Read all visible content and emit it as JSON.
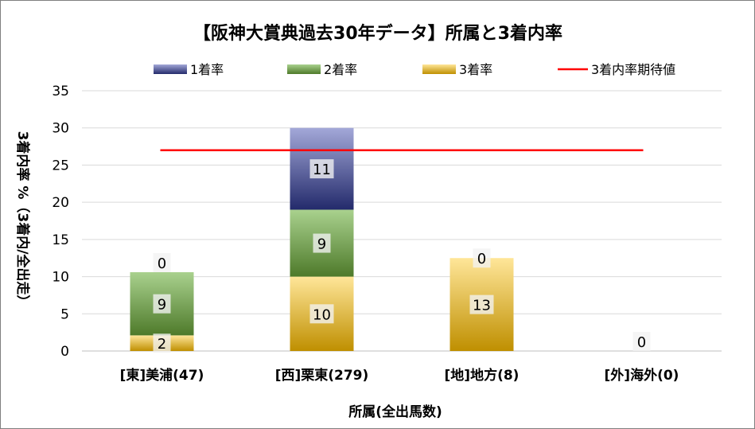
{
  "chart_data": {
    "type": "bar",
    "stacked": true,
    "title": "【阪神大賞典過去30年データ】所属と3着内率",
    "xlabel": "所属(全出馬数)",
    "ylabel": "3着内率 %（3着内/全出走）",
    "ylim": [
      0,
      35
    ],
    "yticks": [
      0,
      5,
      10,
      15,
      20,
      25,
      30,
      35
    ],
    "grid": true,
    "legend_position": "top",
    "categories": [
      "[東]美浦(47)",
      "[西]栗東(279)",
      "[地]地方(8)",
      "[外]海外(0)"
    ],
    "series": [
      {
        "name": "1着率",
        "values": [
          0,
          11,
          0,
          0
        ],
        "labels": [
          "0",
          "11",
          "",
          "0"
        ],
        "color_top": "#a3a8d8",
        "color_bottom": "#232a6b"
      },
      {
        "name": "2着率",
        "values": [
          8.5,
          9,
          0,
          0
        ],
        "labels": [
          "9",
          "9",
          "",
          ""
        ],
        "color_top": "#a9d18e",
        "color_bottom": "#4e7a2a"
      },
      {
        "name": "3着率",
        "values": [
          2.1,
          10,
          12.5,
          0
        ],
        "labels": [
          "2",
          "10",
          "13",
          ""
        ],
        "color_top": "#ffe699",
        "color_bottom": "#bf8f00"
      }
    ],
    "reference_line": {
      "name": "3着内率期待値",
      "value": 27,
      "color": "#ff0000"
    },
    "extra_labels": [
      {
        "category_index": 2,
        "text": "0"
      }
    ]
  }
}
